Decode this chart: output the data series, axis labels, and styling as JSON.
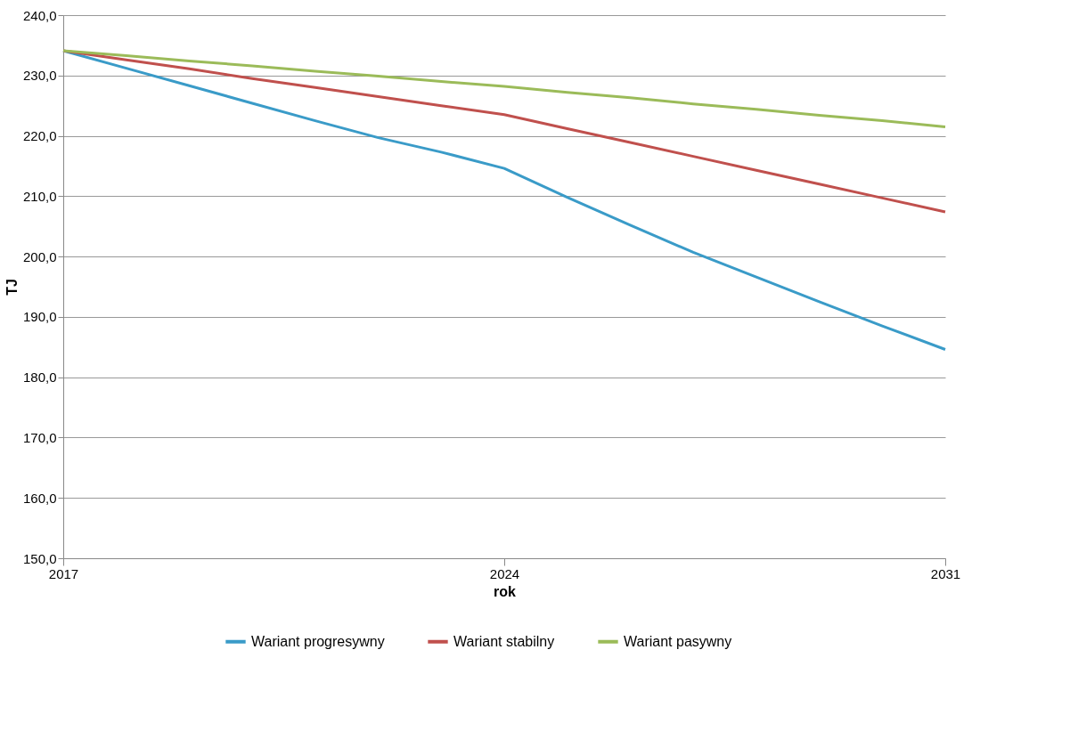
{
  "chart_data": {
    "type": "line",
    "xlabel": "rok",
    "ylabel": "TJ",
    "x": [
      2017,
      2018,
      2019,
      2020,
      2021,
      2022,
      2023,
      2024,
      2025,
      2026,
      2027,
      2028,
      2029,
      2030,
      2031
    ],
    "xlim": [
      2017,
      2031
    ],
    "xticks": [
      2017,
      2024,
      2031
    ],
    "ylim": [
      150,
      240
    ],
    "yticks": [
      {
        "value": 150,
        "label": "150,0"
      },
      {
        "value": 160,
        "label": "160,0"
      },
      {
        "value": 170,
        "label": "170,0"
      },
      {
        "value": 180,
        "label": "180,0"
      },
      {
        "value": 190,
        "label": "190,0"
      },
      {
        "value": 200,
        "label": "200,0"
      },
      {
        "value": 210,
        "label": "210,0"
      },
      {
        "value": 220,
        "label": "220,0"
      },
      {
        "value": 230,
        "label": "230,0"
      },
      {
        "value": 240,
        "label": "240,0"
      }
    ],
    "grid": "y",
    "legend": "bottom",
    "marker": "none",
    "line_style": "solid",
    "series": [
      {
        "name": "Wariant progresywny",
        "color": "#3a9bc8",
        "values": [
          234.1,
          231.2,
          228.3,
          225.4,
          222.5,
          219.7,
          217.3,
          214.6,
          209.8,
          205.2,
          200.7,
          196.6,
          192.5,
          188.5,
          184.6
        ]
      },
      {
        "name": "Wariant stabilny",
        "color": "#c0504d",
        "values": [
          234.1,
          232.6,
          231.1,
          229.5,
          228.0,
          226.5,
          225.0,
          223.5,
          221.2,
          218.9,
          216.6,
          214.3,
          212.0,
          209.7,
          207.4
        ]
      },
      {
        "name": "Wariant pasywny",
        "color": "#9bbb59",
        "values": [
          234.1,
          233.3,
          232.4,
          231.6,
          230.7,
          229.9,
          229.0,
          228.2,
          227.2,
          226.3,
          225.3,
          224.4,
          223.4,
          222.5,
          221.5
        ]
      }
    ]
  }
}
